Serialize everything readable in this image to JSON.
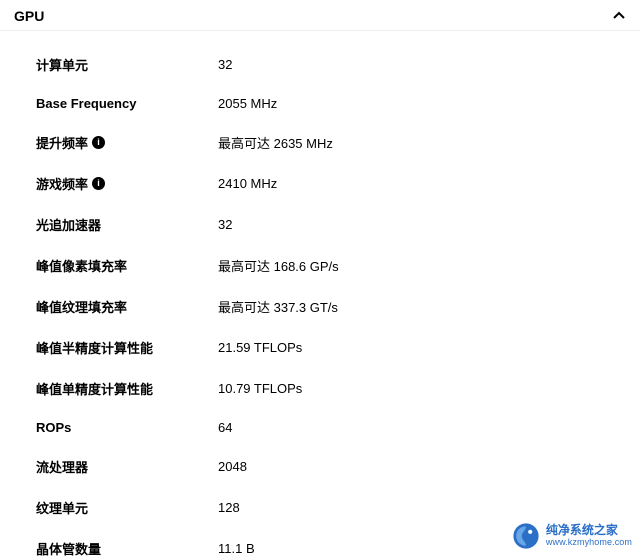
{
  "header": {
    "title": "GPU"
  },
  "specs": [
    {
      "label": "计算单元",
      "value": "32",
      "info": false
    },
    {
      "label": "Base Frequency",
      "value": "2055 MHz",
      "info": false
    },
    {
      "label": "提升频率",
      "value": "最高可达 2635 MHz",
      "info": true
    },
    {
      "label": "游戏频率",
      "value": "2410 MHz",
      "info": true
    },
    {
      "label": "光追加速器",
      "value": "32",
      "info": false
    },
    {
      "label": "峰值像素填充率",
      "value": "最高可达 168.6 GP/s",
      "info": false
    },
    {
      "label": "峰值纹理填充率",
      "value": "最高可达 337.3 GT/s",
      "info": false
    },
    {
      "label": "峰值半精度计算性能",
      "value": "21.59 TFLOPs",
      "info": false
    },
    {
      "label": "峰值单精度计算性能",
      "value": "10.79 TFLOPs",
      "info": false
    },
    {
      "label": "ROPs",
      "value": "64",
      "info": false
    },
    {
      "label": "流处理器",
      "value": "2048",
      "info": false
    },
    {
      "label": "纹理单元",
      "value": "128",
      "info": false
    },
    {
      "label": "晶体管数量",
      "value": "11.1 B",
      "info": false
    }
  ],
  "watermark": {
    "line1": "纯净系统之家",
    "line2": "www.kzmyhome.com",
    "icon_colors": {
      "outer": "#2b6fc7",
      "inner": "#69a6e6",
      "accent": "#ffffff"
    }
  },
  "colors": {
    "text": "#000000",
    "background": "#ffffff",
    "divider": "#eeeeee",
    "watermark_text": "#2b6fc7"
  }
}
